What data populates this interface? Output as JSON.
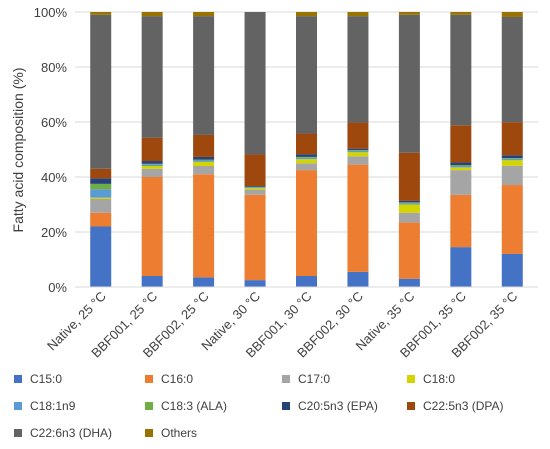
{
  "chart_data": {
    "type": "bar",
    "stacked": true,
    "percent": true,
    "ylabel": "Fatty acid composition (%)",
    "xlabel": "",
    "ylim": [
      0,
      100
    ],
    "yticks": [
      "0%",
      "20%",
      "40%",
      "60%",
      "80%",
      "100%"
    ],
    "grid": true,
    "legend_position": "bottom",
    "categories": [
      "Native, 25 °C",
      "BBF001, 25 °C",
      "BBF002, 25 °C",
      "Native, 30 °C",
      "BBF001, 30 °C",
      "BBF002, 30 °C",
      "Native, 35 °C",
      "BBF001, 35 °C",
      "BBF002, 35 °C"
    ],
    "series": [
      {
        "name": "C15:0",
        "color": "#4472C4",
        "values": [
          22,
          4,
          3.5,
          2.5,
          4,
          5.5,
          3,
          14.5,
          12
        ]
      },
      {
        "name": "C16:0",
        "color": "#ED7D31",
        "values": [
          5,
          36,
          37.5,
          31,
          38.5,
          39,
          20.5,
          19,
          25
        ]
      },
      {
        "name": "C17:0",
        "color": "#A5A5A5",
        "values": [
          5,
          3,
          3,
          2,
          2.5,
          3,
          3.5,
          9,
          7
        ]
      },
      {
        "name": "C18:0",
        "color": "#D4D400",
        "values": [
          0.5,
          1,
          1.5,
          0.5,
          1.5,
          1.5,
          3,
          1,
          2
        ]
      },
      {
        "name": "C18:1n9",
        "color": "#5B9BD5",
        "values": [
          3,
          0.5,
          0.5,
          0.2,
          0.5,
          0.5,
          0.5,
          0.5,
          0.5
        ]
      },
      {
        "name": "C18:3 (ALA)",
        "color": "#70AD47",
        "values": [
          2,
          0.3,
          0.3,
          0.2,
          0.3,
          0.3,
          0.3,
          0.3,
          0.3
        ]
      },
      {
        "name": "C20:5n3 (EPA)",
        "color": "#264478",
        "values": [
          2,
          1,
          1,
          0.3,
          1,
          0.5,
          0.5,
          1,
          1
        ]
      },
      {
        "name": "C22:5n3 (DPA)",
        "color": "#9E480E",
        "values": [
          3.5,
          8.5,
          8,
          11.5,
          7.5,
          9.5,
          17.5,
          13.5,
          12
        ]
      },
      {
        "name": "C22:6n3 (DHA)",
        "color": "#636363",
        "values": [
          56,
          44.2,
          43.2,
          51.8,
          42.7,
          38.7,
          50.2,
          40.2,
          38.2
        ]
      },
      {
        "name": "Others",
        "color": "#997300",
        "values": [
          1,
          1.5,
          1.5,
          0,
          1.5,
          1.5,
          1,
          1,
          1.8
        ]
      }
    ]
  }
}
